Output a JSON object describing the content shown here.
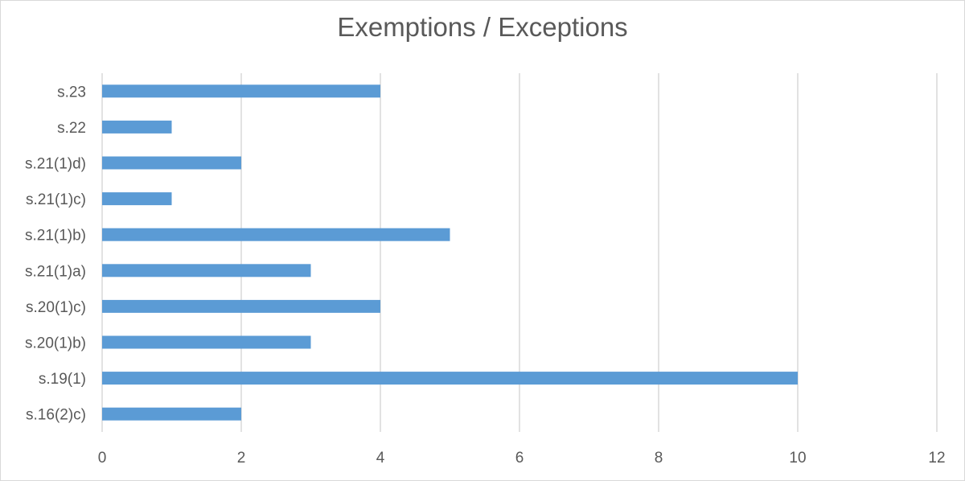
{
  "chart_data": {
    "type": "bar",
    "orientation": "horizontal",
    "title": "Exemptions / Exceptions",
    "categories": [
      "s.23",
      "s.22",
      "s.21(1)d)",
      "s.21(1)c)",
      "s.21(1)b)",
      "s.21(1)a)",
      "s.20(1)c)",
      "s.20(1)b)",
      "s.19(1)",
      "s.16(2)c)"
    ],
    "values": [
      4,
      1,
      2,
      1,
      5,
      3,
      4,
      3,
      10,
      2
    ],
    "xlim": [
      0,
      12
    ],
    "xticks": [
      "0",
      "2",
      "4",
      "6",
      "8",
      "10",
      "12"
    ],
    "xlabel": "",
    "ylabel": "",
    "grid": "vertical",
    "legend": "none",
    "bar_color": "#5B9BD5"
  }
}
